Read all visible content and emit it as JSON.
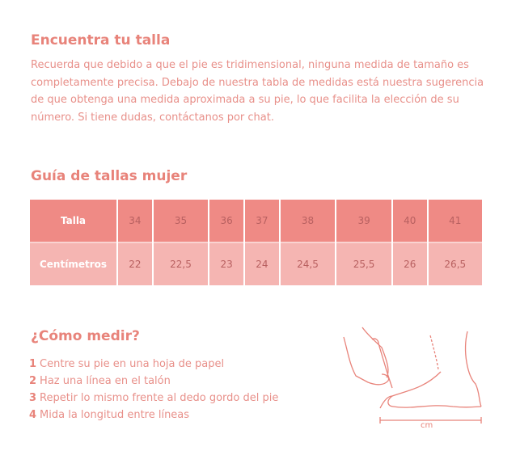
{
  "intro": {
    "title": "Encuentra tu talla",
    "text": "Recuerda que debido a que el pie es tridimensional, ninguna medida de tamaño es completamente precisa. Debajo de nuestra tabla de medidas está nuestra sugerencia de que obtenga una medida aproximada a su pie, lo que facilita la elección de su número. Si tiene dudas, contáctanos por chat."
  },
  "guide": {
    "title": "Guía de tallas mujer",
    "rows": [
      {
        "label": "Talla",
        "values": [
          "34",
          "35",
          "36",
          "37",
          "38",
          "39",
          "40",
          "41"
        ]
      },
      {
        "label": "Centímetros",
        "values": [
          "22",
          "22,5",
          "23",
          "24",
          "24,5",
          "25,5",
          "26",
          "26,5"
        ]
      }
    ]
  },
  "measure": {
    "title": "¿Cómo medir?",
    "steps": [
      {
        "n": "1",
        "text": "Centre su pie en una hoja de papel"
      },
      {
        "n": "2",
        "text": "Haz una línea en el talón"
      },
      {
        "n": "3",
        "text": "Repetir lo mismo frente al dedo gordo del pie"
      },
      {
        "n": "4",
        "text": "Mida la longitud entre líneas"
      }
    ],
    "unit_label": "cm"
  },
  "colors": {
    "accent": "#e8837a",
    "header_row": "#ef8a85",
    "second_row": "#f5b5b2"
  }
}
